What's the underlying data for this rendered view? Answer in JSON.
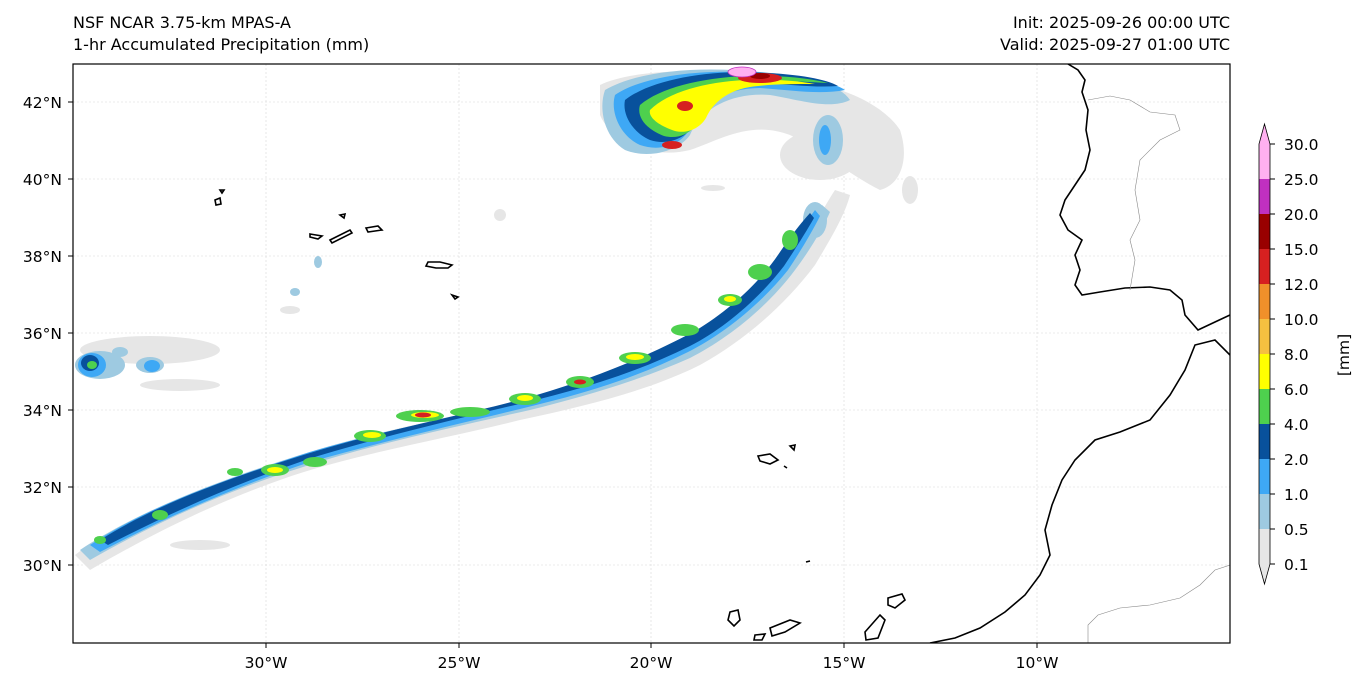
{
  "header": {
    "model": "NSF NCAR 3.75-km MPAS-A",
    "field": "1-hr Accumulated Precipitation (mm)",
    "init": "Init: 2025-09-26 00:00 UTC",
    "valid": "Valid: 2025-09-27 01:00 UTC"
  },
  "axes": {
    "lat_labels": [
      "42°N",
      "40°N",
      "38°N",
      "36°N",
      "34°N",
      "32°N",
      "30°N"
    ],
    "lon_labels": [
      "30°W",
      "25°W",
      "20°W",
      "15°W",
      "10°W"
    ]
  },
  "colorbar": {
    "unit_label": "[mm]",
    "levels": [
      "0.1",
      "0.5",
      "1.0",
      "2.0",
      "4.0",
      "6.0",
      "8.0",
      "10.0",
      "12.0",
      "15.0",
      "20.0",
      "25.0",
      "30.0"
    ],
    "colors": [
      "#e6e6e6",
      "#9ecae1",
      "#3ea8f5",
      "#08519c",
      "#4ed04e",
      "#ffff00",
      "#f5c040",
      "#f0902a",
      "#d62020",
      "#990000",
      "#c030c0",
      "#ffb0f0"
    ]
  }
}
